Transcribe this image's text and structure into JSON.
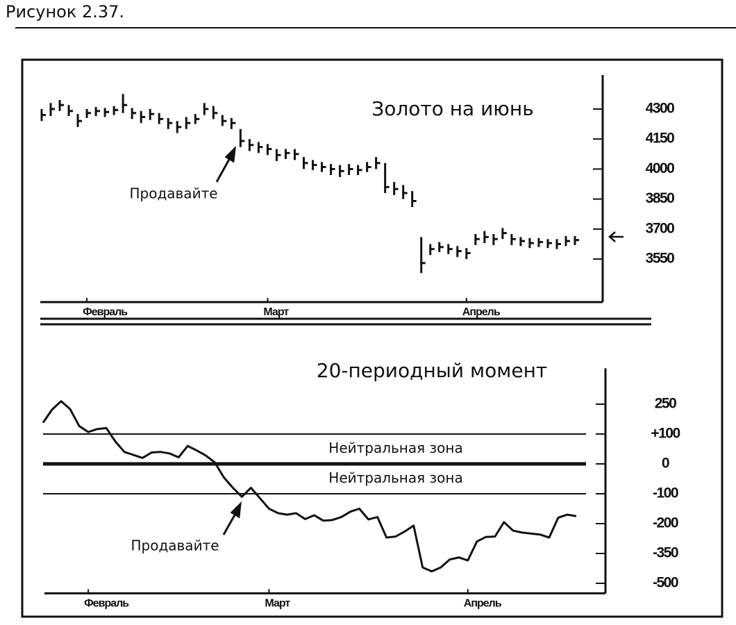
{
  "figure_label": "Рисунок 2.37.",
  "chart_data": [
    {
      "type": "ohlc",
      "title": "Золото на июнь",
      "annotation": "Продавайте",
      "categories": [
        null,
        null,
        null,
        null,
        null,
        "Февраль",
        null,
        null,
        null,
        null,
        null,
        null,
        null,
        null,
        null,
        null,
        null,
        null,
        null,
        null,
        null,
        null,
        null,
        null,
        null,
        "Март",
        null,
        null,
        null,
        null,
        null,
        null,
        null,
        null,
        null,
        null,
        null,
        null,
        null,
        null,
        null,
        null,
        null,
        null,
        null,
        null,
        null,
        "Апрель",
        null,
        null,
        null,
        null,
        null,
        null,
        null,
        null,
        null,
        null,
        null,
        null
      ],
      "high": [
        4300,
        4330,
        4345,
        4320,
        4275,
        4300,
        4310,
        4305,
        4315,
        4375,
        4305,
        4290,
        4300,
        4280,
        4255,
        4240,
        4260,
        4275,
        4330,
        4315,
        4270,
        4255,
        4200,
        4150,
        4135,
        4125,
        4100,
        4100,
        4100,
        4060,
        4045,
        4035,
        4025,
        4020,
        4025,
        4020,
        4035,
        4060,
        4030,
        3935,
        3920,
        3890,
        3660,
        3625,
        3635,
        3625,
        3615,
        3605,
        3675,
        3690,
        3675,
        3705,
        3675,
        3660,
        3655,
        3655,
        3650,
        3650,
        3665,
        3665
      ],
      "low": [
        4240,
        4265,
        4290,
        4265,
        4210,
        4255,
        4265,
        4260,
        4270,
        4280,
        4250,
        4230,
        4245,
        4225,
        4200,
        4180,
        4200,
        4225,
        4270,
        4250,
        4215,
        4200,
        4110,
        4090,
        4080,
        4070,
        4040,
        4050,
        4045,
        4000,
        3995,
        3985,
        3970,
        3960,
        3970,
        3970,
        3985,
        4000,
        3880,
        3870,
        3850,
        3810,
        3480,
        3570,
        3585,
        3575,
        3560,
        3550,
        3620,
        3630,
        3620,
        3650,
        3620,
        3615,
        3605,
        3610,
        3605,
        3600,
        3615,
        3620
      ],
      "close": [
        4270,
        4300,
        4320,
        4290,
        4240,
        4280,
        4290,
        4285,
        4295,
        4320,
        4280,
        4260,
        4275,
        4250,
        4230,
        4210,
        4230,
        4250,
        4300,
        4280,
        4240,
        4230,
        4140,
        4120,
        4110,
        4100,
        4070,
        4080,
        4075,
        4030,
        4020,
        4010,
        4000,
        3990,
        4000,
        3995,
        4010,
        4030,
        3910,
        3900,
        3880,
        3840,
        3530,
        3600,
        3610,
        3600,
        3590,
        3580,
        3650,
        3660,
        3650,
        3680,
        3650,
        3640,
        3630,
        3635,
        3630,
        3625,
        3640,
        3645
      ],
      "ylim": [
        3335,
        4470
      ],
      "yticks": [
        3550,
        3700,
        3850,
        4000,
        4150,
        4300
      ],
      "color": "#111111"
    },
    {
      "type": "line",
      "title": "20-периодный момент",
      "annotation": "Продавайте",
      "categories": [
        null,
        null,
        null,
        null,
        null,
        "Февраль",
        null,
        null,
        null,
        null,
        null,
        null,
        null,
        null,
        null,
        null,
        null,
        null,
        null,
        null,
        null,
        null,
        null,
        null,
        null,
        "Март",
        null,
        null,
        null,
        null,
        null,
        null,
        null,
        null,
        null,
        null,
        null,
        null,
        null,
        null,
        null,
        null,
        null,
        null,
        null,
        null,
        null,
        "Апрель",
        null,
        null,
        null,
        null,
        null,
        null,
        null,
        null,
        null,
        null,
        null,
        null
      ],
      "values": [
        157,
        223,
        265,
        225,
        140,
        110,
        125,
        130,
        75,
        40,
        30,
        20,
        38,
        40,
        35,
        22,
        60,
        45,
        28,
        5,
        -45,
        -80,
        -110,
        -80,
        -115,
        -150,
        -165,
        -170,
        -165,
        -185,
        -172,
        -190,
        -188,
        -178,
        -160,
        -150,
        -186,
        -178,
        -270,
        -265,
        -240,
        -210,
        -420,
        -440,
        -420,
        -380,
        -370,
        -385,
        -290,
        -267,
        -265,
        -195,
        -235,
        -245,
        -250,
        -255,
        -270,
        -180,
        -170,
        -175
      ],
      "ylim": [
        -550,
        430
      ],
      "yticks": [
        250,
        {
          "value": 100,
          "label": "+100"
        },
        0,
        -100,
        -200,
        -350,
        -500
      ],
      "reference_lines": [
        100,
        0,
        -100
      ],
      "reference_labels": [
        "Нейтральная зона",
        "Нейтральная зона"
      ],
      "color": "#111111"
    }
  ]
}
